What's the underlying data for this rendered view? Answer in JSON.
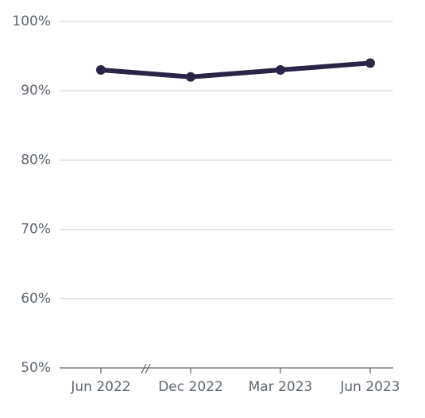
{
  "chart_data": {
    "type": "line",
    "categories": [
      "Jun 2022",
      "Dec 2022",
      "Mar 2023",
      "Jun 2023"
    ],
    "series": [
      {
        "color": "#2a2447",
        "values": [
          93,
          92,
          93,
          94
        ]
      }
    ],
    "ylim": [
      50,
      100
    ],
    "yticks": [
      {
        "value": 50,
        "label": "50%"
      },
      {
        "value": 60,
        "label": "60%"
      },
      {
        "value": 70,
        "label": "70%"
      },
      {
        "value": 80,
        "label": "80%"
      },
      {
        "value": 90,
        "label": "90%"
      },
      {
        "value": 100,
        "label": "100%"
      }
    ],
    "grid": true
  }
}
